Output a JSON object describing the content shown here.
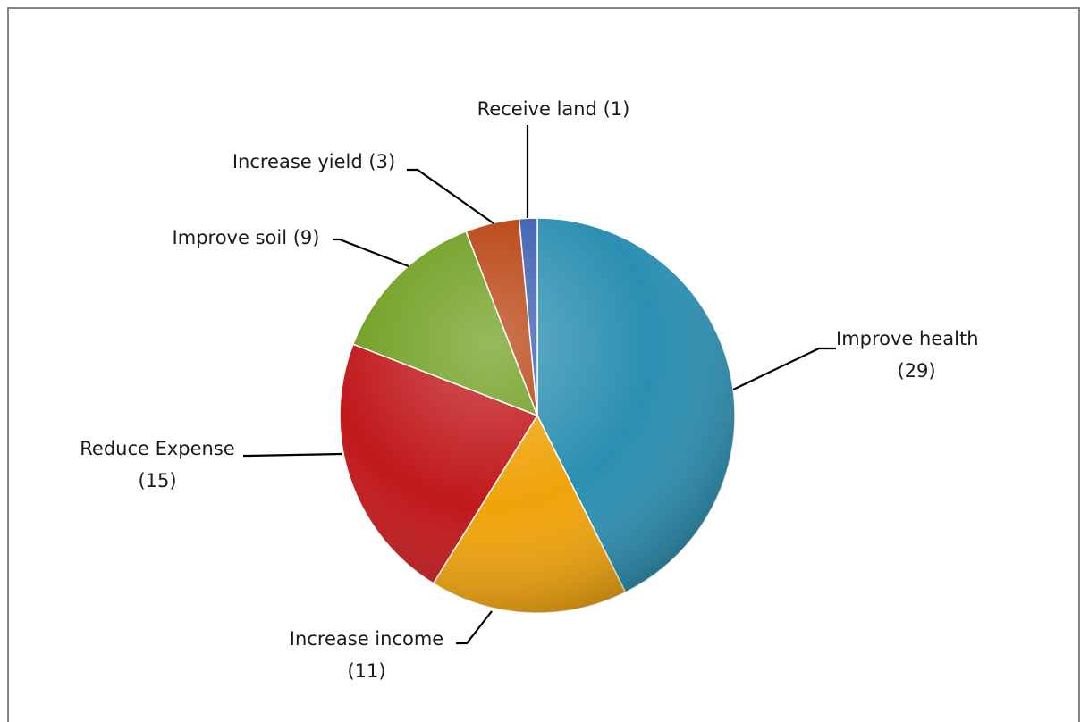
{
  "chart_data": {
    "type": "pie",
    "slices": [
      {
        "category": "Improve health",
        "label": "Improve health",
        "value_label": "(29)",
        "value": 29,
        "color": "#2b8fb1"
      },
      {
        "category": "Increase income",
        "label": "Increase income",
        "value_label": "(11)",
        "value": 11,
        "color": "#f0a30a"
      },
      {
        "category": "Reduce Expense",
        "label": "Reduce Expense",
        "value_label": "(15)",
        "value": 15,
        "color": "#c0181b"
      },
      {
        "category": "Improve soil",
        "label": "Improve soil (9)",
        "value_label": "",
        "value": 9,
        "color": "#6e9e1e"
      },
      {
        "category": "Increase yield",
        "label": "Increase yield (3)",
        "value_label": "",
        "value": 3,
        "color": "#b8420f"
      },
      {
        "category": "Receive land",
        "label": "Receive land (1)",
        "value_label": "",
        "value": 1,
        "color": "#3d5fb0"
      }
    ],
    "start": "12 o'clock",
    "direction": "clockwise",
    "legend": "none"
  }
}
